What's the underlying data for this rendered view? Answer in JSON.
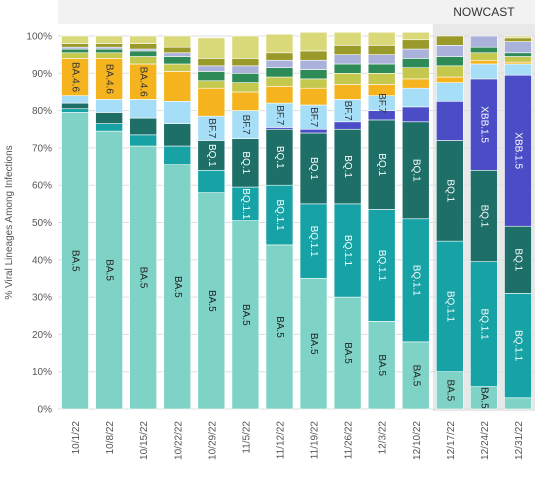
{
  "chart_data": {
    "type": "bar",
    "stacked": true,
    "orientation": "vertical",
    "title": "",
    "xlabel": "",
    "ylabel": "% Viral Lineages Among Infections",
    "ylim": [
      0,
      100
    ],
    "ytick_labels": [
      "0%",
      "10%",
      "20%",
      "30%",
      "40%",
      "50%",
      "60%",
      "70%",
      "80%",
      "90%",
      "100%"
    ],
    "grid": true,
    "legend": "none",
    "nowcast_label": "NOWCAST",
    "nowcast_categories": [
      "12/17/22",
      "12/24/22",
      "12/31/22"
    ],
    "categories": [
      "10/1/22",
      "10/8/22",
      "10/15/22",
      "10/22/22",
      "10/29/22",
      "11/5/22",
      "11/12/22",
      "11/19/22",
      "11/26/22",
      "12/3/22",
      "12/10/22",
      "12/17/22",
      "12/24/22",
      "12/31/22"
    ],
    "series": [
      {
        "key": "ba5",
        "label": "BA.5",
        "color": "#7fd3c6",
        "text_color": "#222222",
        "values": [
          79.5,
          74.5,
          70.5,
          65.5,
          58,
          50.5,
          44,
          35,
          30,
          23.5,
          18,
          10,
          6,
          3
        ]
      },
      {
        "key": "bq11",
        "label": "BQ.1.1",
        "color": "#17a2a6",
        "text_color": "#ffffff",
        "values": [
          1,
          2,
          3,
          5,
          6,
          9,
          16,
          20,
          25,
          30,
          33,
          35,
          33.5,
          28
        ]
      },
      {
        "key": "bq1",
        "label": "BQ.1",
        "color": "#1e6f68",
        "text_color": "#ffffff",
        "values": [
          1.5,
          3,
          4.5,
          6,
          8,
          13,
          15,
          19,
          20,
          24,
          26,
          27,
          24.5,
          18
        ]
      },
      {
        "key": "xbb15",
        "label": "XBB.1.5",
        "color": "#4b4dc7",
        "text_color": "#ffffff",
        "values": [
          0,
          0,
          0,
          0,
          0,
          0,
          0.5,
          1,
          2,
          2.5,
          4,
          10.5,
          24.5,
          40.5
        ]
      },
      {
        "key": "bf7",
        "label": "BF.7",
        "color": "#a6def7",
        "text_color": "#333333",
        "values": [
          2,
          3.5,
          5,
          6,
          6.5,
          7.5,
          6.5,
          6.5,
          6,
          4,
          5,
          5,
          4,
          3
        ]
      },
      {
        "key": "ba46",
        "label": "BA.4.6",
        "color": "#f5b41e",
        "text_color": "#333333",
        "values": [
          10,
          11,
          9.5,
          8,
          7.5,
          5,
          4.5,
          4.5,
          4,
          3,
          2.5,
          1.5,
          1,
          0.5
        ]
      },
      {
        "key": "other1",
        "label": "",
        "color": "#c4c84c",
        "text_color": "#333333",
        "values": [
          1.5,
          1.5,
          2,
          2,
          2,
          2.5,
          2.5,
          2.5,
          3,
          3,
          3,
          3,
          2,
          1.5
        ]
      },
      {
        "key": "other2",
        "label": "",
        "color": "#2e8b57",
        "text_color": "#ffffff",
        "values": [
          1,
          1,
          1.5,
          2,
          2.5,
          2.5,
          2.5,
          2.5,
          2.5,
          2.5,
          2.5,
          2.5,
          1.5,
          1
        ]
      },
      {
        "key": "other3",
        "label": "",
        "color": "#aab2dc",
        "text_color": "#333333",
        "values": [
          0.5,
          0.5,
          0.5,
          1,
          1.5,
          2,
          2,
          2.5,
          2.5,
          2.5,
          2.5,
          3,
          3,
          3
        ]
      },
      {
        "key": "other4",
        "label": "",
        "color": "#9a9a2a",
        "text_color": "#ffffff",
        "values": [
          1,
          1,
          1.5,
          1.5,
          2,
          2,
          2,
          2.5,
          2.5,
          2.5,
          2.5,
          2.5,
          0,
          1
        ]
      },
      {
        "key": "other5",
        "label": "",
        "color": "#d9d97a",
        "text_color": "#333333",
        "values": [
          2,
          2,
          2,
          3,
          5.5,
          6,
          5,
          5,
          3.5,
          3.5,
          2,
          0,
          0,
          0.5
        ]
      }
    ],
    "segment_labels": [
      {
        "category": 0,
        "series": "ba5",
        "text": "BA.5"
      },
      {
        "category": 0,
        "series": "ba46",
        "text": "BA.4.6"
      },
      {
        "category": 1,
        "series": "ba5",
        "text": "BA.5"
      },
      {
        "category": 1,
        "series": "ba46",
        "text": "BA.4.6"
      },
      {
        "category": 2,
        "series": "ba5",
        "text": "BA.5"
      },
      {
        "category": 2,
        "series": "ba46",
        "text": "BA.4.6"
      },
      {
        "category": 3,
        "series": "ba5",
        "text": "BA.5"
      },
      {
        "category": 4,
        "series": "ba5",
        "text": "BA.5"
      },
      {
        "category": 4,
        "series": "bq1",
        "text": "BQ.1"
      },
      {
        "category": 4,
        "series": "bf7",
        "text": "BF.7"
      },
      {
        "category": 5,
        "series": "ba5",
        "text": "BA.5"
      },
      {
        "category": 5,
        "series": "bq11",
        "text": "BQ.1.1"
      },
      {
        "category": 5,
        "series": "bq1",
        "text": "BQ.1"
      },
      {
        "category": 5,
        "series": "bf7",
        "text": "BF.7"
      },
      {
        "category": 6,
        "series": "ba5",
        "text": "BA.5"
      },
      {
        "category": 6,
        "series": "bq11",
        "text": "BQ.1.1"
      },
      {
        "category": 6,
        "series": "bq1",
        "text": "BQ.1"
      },
      {
        "category": 6,
        "series": "bf7",
        "text": "BF.7"
      },
      {
        "category": 7,
        "series": "ba5",
        "text": "BA.5"
      },
      {
        "category": 7,
        "series": "bq11",
        "text": "BQ.1.1"
      },
      {
        "category": 7,
        "series": "bq1",
        "text": "BQ.1"
      },
      {
        "category": 7,
        "series": "bf7",
        "text": "BF.7"
      },
      {
        "category": 8,
        "series": "ba5",
        "text": "BA.5"
      },
      {
        "category": 8,
        "series": "bq11",
        "text": "BQ.1.1"
      },
      {
        "category": 8,
        "series": "bq1",
        "text": "BQ.1"
      },
      {
        "category": 8,
        "series": "bf7",
        "text": "BF.7"
      },
      {
        "category": 9,
        "series": "ba5",
        "text": "BA.5"
      },
      {
        "category": 9,
        "series": "bq11",
        "text": "BQ.1.1"
      },
      {
        "category": 9,
        "series": "bq1",
        "text": "BQ.1"
      },
      {
        "category": 9,
        "series": "bf7",
        "text": "BF.7"
      },
      {
        "category": 10,
        "series": "ba5",
        "text": "BA.5"
      },
      {
        "category": 10,
        "series": "bq11",
        "text": "BQ.1.1"
      },
      {
        "category": 10,
        "series": "bq1",
        "text": "BQ.1"
      },
      {
        "category": 11,
        "series": "ba5",
        "text": "BA.5"
      },
      {
        "category": 11,
        "series": "bq11",
        "text": "BQ.1.1"
      },
      {
        "category": 11,
        "series": "bq1",
        "text": "BQ.1"
      },
      {
        "category": 12,
        "series": "ba5",
        "text": "BA.5"
      },
      {
        "category": 12,
        "series": "bq11",
        "text": "BQ.1.1"
      },
      {
        "category": 12,
        "series": "bq1",
        "text": "BQ.1"
      },
      {
        "category": 12,
        "series": "xbb15",
        "text": "XBB.1.5"
      },
      {
        "category": 13,
        "series": "bq11",
        "text": "BQ.1.1"
      },
      {
        "category": 13,
        "series": "bq1",
        "text": "BQ.1"
      },
      {
        "category": 13,
        "series": "xbb15",
        "text": "XBB.1.5"
      }
    ]
  }
}
